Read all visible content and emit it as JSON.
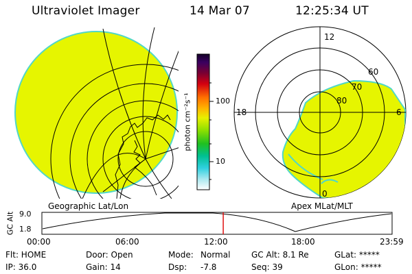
{
  "header": {
    "instrument": "Ultraviolet Imager",
    "date": "14 Mar 07",
    "time": "12:25:34 UT"
  },
  "colorbar": {
    "unit_label": "photon cm⁻²s⁻¹",
    "tick_labels": [
      "100",
      "10"
    ]
  },
  "left_panel": {
    "label": "Geographic Lat/Lon"
  },
  "right_panel": {
    "label": "Apex MLat/MLT",
    "mlt_labels": [
      "12",
      "18",
      "6",
      "0"
    ],
    "lat_labels": [
      "60",
      "70",
      "80"
    ]
  },
  "altitude_plot": {
    "y_label": "GC Alt",
    "y_ticks": [
      "9.0",
      "1.8"
    ],
    "x_ticks": [
      "00:00",
      "06:00",
      "12:00",
      "18:00",
      "23:59"
    ],
    "current_time_hours": 12.43
  },
  "status": {
    "flt": "Flt: HOME",
    "ip": "IP: 36.0",
    "door": "Door: Open",
    "gain": "Gain: 14",
    "mode_label": "Mode:",
    "mode_value": "Normal",
    "dsp_label": "Dsp:",
    "dsp_value": "-7.8",
    "gc_alt": "GC Alt: 8.1 Re",
    "seq": "Seq: 39",
    "glat": "GLat: *****",
    "glon": "GLon: *****"
  },
  "colors": {
    "image_fill": "#e6f500",
    "image_edge": "#50d7c8",
    "time_marker": "#e01010"
  }
}
